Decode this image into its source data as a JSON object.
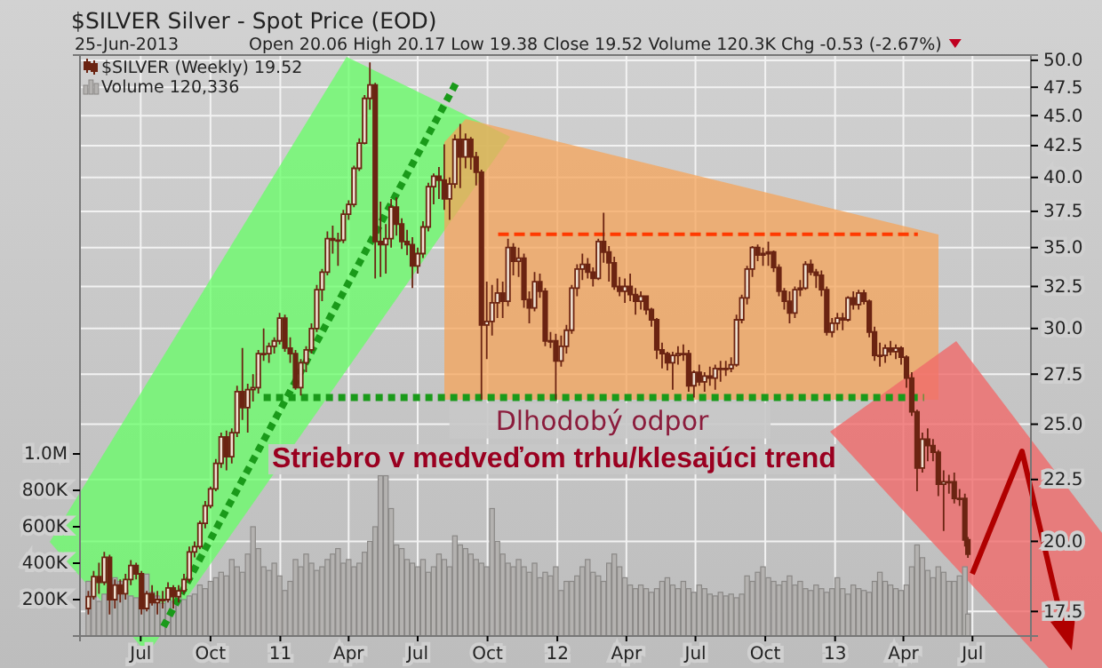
{
  "chart_data": {
    "type": "candlestick",
    "title": "$SILVER Silver - Spot Price (EOD)",
    "subtitle": "25-Jun-2013",
    "annotations": [
      "Open 20.06 High 20.17 Low 19.38 Close 19.52 Volume 120.3K Chg -0.53 (-2.67%)",
      {
        "text": "Dlhodobý odpor",
        "x": "2011-10-07",
        "y": 26.3
      },
      "Striebro v medveďom trhu/klesajúci trend"
    ],
    "x": [
      "2010-04-23",
      "2010-04-30",
      "2010-05-07",
      "2010-05-14",
      "2010-05-21",
      "2010-05-28",
      "2010-06-04",
      "2010-06-11",
      "2010-06-18",
      "2010-06-25",
      "2010-07-02",
      "2010-07-09",
      "2010-07-16",
      "2010-07-23",
      "2010-07-30",
      "2010-08-06",
      "2010-08-13",
      "2010-08-20",
      "2010-08-27",
      "2010-09-03",
      "2010-09-10",
      "2010-09-17",
      "2010-09-24",
      "2010-10-01",
      "2010-10-08",
      "2010-10-15",
      "2010-10-22",
      "2010-10-29",
      "2010-11-05",
      "2010-11-12",
      "2010-11-19",
      "2010-11-26",
      "2010-12-03",
      "2010-12-10",
      "2010-12-17",
      "2010-12-24",
      "2010-12-31",
      "2011-01-07",
      "2011-01-14",
      "2011-01-21",
      "2011-01-28",
      "2011-02-04",
      "2011-02-11",
      "2011-02-18",
      "2011-02-25",
      "2011-03-04",
      "2011-03-11",
      "2011-03-18",
      "2011-03-25",
      "2011-04-01",
      "2011-04-08",
      "2011-04-15",
      "2011-04-22",
      "2011-04-29",
      "2011-05-06",
      "2011-05-13",
      "2011-05-20",
      "2011-05-27",
      "2011-06-03",
      "2011-06-10",
      "2011-06-17",
      "2011-06-24",
      "2011-07-01",
      "2011-07-08",
      "2011-07-15",
      "2011-07-22",
      "2011-07-29",
      "2011-08-05",
      "2011-08-12",
      "2011-08-19",
      "2011-08-26",
      "2011-09-02",
      "2011-09-09",
      "2011-09-16",
      "2011-09-23",
      "2011-09-30",
      "2011-10-07",
      "2011-10-14",
      "2011-10-21",
      "2011-10-28",
      "2011-11-04",
      "2011-11-11",
      "2011-11-18",
      "2011-11-25",
      "2011-12-02",
      "2011-12-09",
      "2011-12-16",
      "2011-12-23",
      "2011-12-30",
      "2012-01-06",
      "2012-01-13",
      "2012-01-20",
      "2012-01-27",
      "2012-02-03",
      "2012-02-10",
      "2012-02-17",
      "2012-02-24",
      "2012-03-02",
      "2012-03-09",
      "2012-03-16",
      "2012-03-23",
      "2012-03-30",
      "2012-04-06",
      "2012-04-13",
      "2012-04-20",
      "2012-04-27",
      "2012-05-04",
      "2012-05-11",
      "2012-05-18",
      "2012-05-25",
      "2012-06-01",
      "2012-06-08",
      "2012-06-15",
      "2012-06-22",
      "2012-06-29",
      "2012-07-06",
      "2012-07-13",
      "2012-07-20",
      "2012-07-27",
      "2012-08-03",
      "2012-08-10",
      "2012-08-17",
      "2012-08-24",
      "2012-08-31",
      "2012-09-07",
      "2012-09-14",
      "2012-09-21",
      "2012-09-28",
      "2012-10-05",
      "2012-10-12",
      "2012-10-19",
      "2012-10-26",
      "2012-11-02",
      "2012-11-09",
      "2012-11-16",
      "2012-11-23",
      "2012-11-30",
      "2012-12-07",
      "2012-12-14",
      "2012-12-21",
      "2012-12-28",
      "2013-01-04",
      "2013-01-11",
      "2013-01-18",
      "2013-01-25",
      "2013-02-01",
      "2013-02-08",
      "2013-02-15",
      "2013-02-22",
      "2013-03-01",
      "2013-03-08",
      "2013-03-15",
      "2013-03-22",
      "2013-03-29",
      "2013-04-05",
      "2013-04-12",
      "2013-04-19",
      "2013-04-26",
      "2013-05-03",
      "2013-05-10",
      "2013-05-17",
      "2013-05-24",
      "2013-05-31",
      "2013-06-07",
      "2013-06-14",
      "2013-06-21",
      "2013-06-25"
    ],
    "series": [
      {
        "name": "$SILVER (Weekly) 19.52",
        "color": "#6b2412",
        "ohlc": [
          [
            17.6,
            18.2,
            17.4,
            18.0
          ],
          [
            18.0,
            18.9,
            17.9,
            18.7
          ],
          [
            18.7,
            19.2,
            18.1,
            18.5
          ],
          [
            18.5,
            19.6,
            18.4,
            19.4
          ],
          [
            19.4,
            19.5,
            17.4,
            17.9
          ],
          [
            17.9,
            18.6,
            17.6,
            18.4
          ],
          [
            18.4,
            18.6,
            17.8,
            18.1
          ],
          [
            18.1,
            18.8,
            17.9,
            18.6
          ],
          [
            18.6,
            19.3,
            18.4,
            19.1
          ],
          [
            19.1,
            19.2,
            18.6,
            18.8
          ],
          [
            18.8,
            18.9,
            17.4,
            17.6
          ],
          [
            17.6,
            18.2,
            17.5,
            18.1
          ],
          [
            18.1,
            18.4,
            17.7,
            17.8
          ],
          [
            17.8,
            18.2,
            17.4,
            17.9
          ],
          [
            17.9,
            18.2,
            17.6,
            17.9
          ],
          [
            17.9,
            18.5,
            17.8,
            18.3
          ],
          [
            18.3,
            18.4,
            17.6,
            18.0
          ],
          [
            18.0,
            18.4,
            17.8,
            18.2
          ],
          [
            18.2,
            18.8,
            18.1,
            18.6
          ],
          [
            18.6,
            19.8,
            18.5,
            19.6
          ],
          [
            19.6,
            20.0,
            19.4,
            19.8
          ],
          [
            19.8,
            20.8,
            19.7,
            20.7
          ],
          [
            20.7,
            21.6,
            20.5,
            21.4
          ],
          [
            21.4,
            22.2,
            21.3,
            22.1
          ],
          [
            22.1,
            23.4,
            22.0,
            23.2
          ],
          [
            23.2,
            24.6,
            23.0,
            24.4
          ],
          [
            24.4,
            24.7,
            22.9,
            23.5
          ],
          [
            23.5,
            24.8,
            23.2,
            24.6
          ],
          [
            24.6,
            26.9,
            24.4,
            26.6
          ],
          [
            26.6,
            28.9,
            25.2,
            25.8
          ],
          [
            25.8,
            27.0,
            24.6,
            26.7
          ],
          [
            26.7,
            27.5,
            26.1,
            26.8
          ],
          [
            26.8,
            28.8,
            26.5,
            28.6
          ],
          [
            28.6,
            30.0,
            28.2,
            28.6
          ],
          [
            28.6,
            29.2,
            28.1,
            29.0
          ],
          [
            29.0,
            29.5,
            28.6,
            29.3
          ],
          [
            29.3,
            30.9,
            29.1,
            30.6
          ],
          [
            30.6,
            30.8,
            28.7,
            28.9
          ],
          [
            28.9,
            29.5,
            28.1,
            28.6
          ],
          [
            28.6,
            28.8,
            26.7,
            26.8
          ],
          [
            26.8,
            28.3,
            26.4,
            28.1
          ],
          [
            28.1,
            29.0,
            27.6,
            28.8
          ],
          [
            28.8,
            30.3,
            28.6,
            30.0
          ],
          [
            30.0,
            32.6,
            29.8,
            32.3
          ],
          [
            32.3,
            33.6,
            31.6,
            33.4
          ],
          [
            33.4,
            36.1,
            33.2,
            35.6
          ],
          [
            35.6,
            36.5,
            34.6,
            35.5
          ],
          [
            35.5,
            36.0,
            33.8,
            35.5
          ],
          [
            35.5,
            37.6,
            35.3,
            37.3
          ],
          [
            37.3,
            38.3,
            36.9,
            38.0
          ],
          [
            38.0,
            40.9,
            37.8,
            40.7
          ],
          [
            40.7,
            43.1,
            40.5,
            42.7
          ],
          [
            42.7,
            46.8,
            42.6,
            46.5
          ],
          [
            46.5,
            49.8,
            45.5,
            47.7
          ],
          [
            47.7,
            47.9,
            33.0,
            35.4
          ],
          [
            35.4,
            38.2,
            33.1,
            35.2
          ],
          [
            35.2,
            36.6,
            33.3,
            35.6
          ],
          [
            35.6,
            38.4,
            35.0,
            37.8
          ],
          [
            37.8,
            38.5,
            35.8,
            36.6
          ],
          [
            36.6,
            37.0,
            34.9,
            35.4
          ],
          [
            35.4,
            36.2,
            34.5,
            35.2
          ],
          [
            35.2,
            35.7,
            32.4,
            33.8
          ],
          [
            33.8,
            35.0,
            33.3,
            34.6
          ],
          [
            34.6,
            36.8,
            34.3,
            36.4
          ],
          [
            36.4,
            39.6,
            36.1,
            39.3
          ],
          [
            39.3,
            40.3,
            38.0,
            40.1
          ],
          [
            40.1,
            40.8,
            38.4,
            39.8
          ],
          [
            39.8,
            42.6,
            37.6,
            38.4
          ],
          [
            38.4,
            40.0,
            36.9,
            39.5
          ],
          [
            39.5,
            43.4,
            39.2,
            43.0
          ],
          [
            43.0,
            44.3,
            39.2,
            41.6
          ],
          [
            41.6,
            43.5,
            40.7,
            43.0
          ],
          [
            43.0,
            43.2,
            40.6,
            41.6
          ],
          [
            41.6,
            42.0,
            39.4,
            40.4
          ],
          [
            40.4,
            40.6,
            26.2,
            30.2
          ],
          [
            30.2,
            32.8,
            28.3,
            30.4
          ],
          [
            30.4,
            32.6,
            29.6,
            31.5
          ],
          [
            31.5,
            33.0,
            30.6,
            32.1
          ],
          [
            32.1,
            32.8,
            30.6,
            31.6
          ],
          [
            31.6,
            35.6,
            31.3,
            35.0
          ],
          [
            35.0,
            35.3,
            33.2,
            34.1
          ],
          [
            34.1,
            35.0,
            33.1,
            34.3
          ],
          [
            34.3,
            34.6,
            31.2,
            31.7
          ],
          [
            31.7,
            32.2,
            30.3,
            31.2
          ],
          [
            31.2,
            33.4,
            31.0,
            32.8
          ],
          [
            32.8,
            33.3,
            31.8,
            32.2
          ],
          [
            32.2,
            32.4,
            29.0,
            29.3
          ],
          [
            29.3,
            29.8,
            28.9,
            29.3
          ],
          [
            29.3,
            29.7,
            26.2,
            28.2
          ],
          [
            28.2,
            29.6,
            27.9,
            29.0
          ],
          [
            29.0,
            30.2,
            28.6,
            29.9
          ],
          [
            29.9,
            32.6,
            29.7,
            32.4
          ],
          [
            32.4,
            33.9,
            31.9,
            33.6
          ],
          [
            33.6,
            34.6,
            32.9,
            33.9
          ],
          [
            33.9,
            34.3,
            33.0,
            33.4
          ],
          [
            33.4,
            33.7,
            32.5,
            33.0
          ],
          [
            33.0,
            35.6,
            32.9,
            35.4
          ],
          [
            35.4,
            37.4,
            34.0,
            34.7
          ],
          [
            34.7,
            35.1,
            32.8,
            34.0
          ],
          [
            34.0,
            34.4,
            32.3,
            32.5
          ],
          [
            32.5,
            33.1,
            31.9,
            32.2
          ],
          [
            32.2,
            33.0,
            31.5,
            32.5
          ],
          [
            32.5,
            33.3,
            31.6,
            32.0
          ],
          [
            32.0,
            32.4,
            30.8,
            31.6
          ],
          [
            31.6,
            32.2,
            31.1,
            31.9
          ],
          [
            31.9,
            31.9,
            30.8,
            31.1
          ],
          [
            31.1,
            31.2,
            30.1,
            30.5
          ],
          [
            30.5,
            30.6,
            28.3,
            28.8
          ],
          [
            28.8,
            29.2,
            27.8,
            28.6
          ],
          [
            28.6,
            28.7,
            27.7,
            28.1
          ],
          [
            28.1,
            28.7,
            26.7,
            28.5
          ],
          [
            28.5,
            29.0,
            28.0,
            28.6
          ],
          [
            28.6,
            29.1,
            28.2,
            28.6
          ],
          [
            28.6,
            28.8,
            26.6,
            26.9
          ],
          [
            26.9,
            27.7,
            26.3,
            27.6
          ],
          [
            27.6,
            28.0,
            26.9,
            27.1
          ],
          [
            27.1,
            27.6,
            26.6,
            27.4
          ],
          [
            27.4,
            27.9,
            26.9,
            27.3
          ],
          [
            27.3,
            28.0,
            26.7,
            27.8
          ],
          [
            27.8,
            28.2,
            27.1,
            27.8
          ],
          [
            27.8,
            28.2,
            27.4,
            27.8
          ],
          [
            27.8,
            28.4,
            27.6,
            28.0
          ],
          [
            28.0,
            30.8,
            27.9,
            30.5
          ],
          [
            30.5,
            32.0,
            30.3,
            31.8
          ],
          [
            31.8,
            33.8,
            31.4,
            33.6
          ],
          [
            33.6,
            35.1,
            33.1,
            35.0
          ],
          [
            35.0,
            35.2,
            34.1,
            34.5
          ],
          [
            34.5,
            35.0,
            33.8,
            34.6
          ],
          [
            34.6,
            35.4,
            33.8,
            34.7
          ],
          [
            34.7,
            34.8,
            33.4,
            33.7
          ],
          [
            33.7,
            33.9,
            31.9,
            32.2
          ],
          [
            32.2,
            32.4,
            31.1,
            31.6
          ],
          [
            31.6,
            32.2,
            30.3,
            30.9
          ],
          [
            30.9,
            32.5,
            30.6,
            32.3
          ],
          [
            32.3,
            32.9,
            31.9,
            32.4
          ],
          [
            32.4,
            34.1,
            32.3,
            33.9
          ],
          [
            33.9,
            34.2,
            33.2,
            33.4
          ],
          [
            33.4,
            33.6,
            32.4,
            33.2
          ],
          [
            33.2,
            33.5,
            31.9,
            32.3
          ],
          [
            32.3,
            32.5,
            29.6,
            29.8
          ],
          [
            29.8,
            30.6,
            29.5,
            30.3
          ],
          [
            30.3,
            30.9,
            29.9,
            30.6
          ],
          [
            30.6,
            30.9,
            29.9,
            30.5
          ],
          [
            30.5,
            31.9,
            30.4,
            31.8
          ],
          [
            31.8,
            32.2,
            31.1,
            31.4
          ],
          [
            31.4,
            32.3,
            31.1,
            32.1
          ],
          [
            32.1,
            32.3,
            31.4,
            31.6
          ],
          [
            31.6,
            31.7,
            29.5,
            29.8
          ],
          [
            29.8,
            30.1,
            28.2,
            28.5
          ],
          [
            28.5,
            29.2,
            27.9,
            28.5
          ],
          [
            28.5,
            29.1,
            28.1,
            28.9
          ],
          [
            28.9,
            29.3,
            28.5,
            28.7
          ],
          [
            28.7,
            29.1,
            28.3,
            28.9
          ],
          [
            28.9,
            29.0,
            28.0,
            28.4
          ],
          [
            28.4,
            28.5,
            26.8,
            27.3
          ],
          [
            27.3,
            27.6,
            25.4,
            25.6
          ],
          [
            25.6,
            25.7,
            22.0,
            23.0
          ],
          [
            23.0,
            24.6,
            22.8,
            24.3
          ],
          [
            24.3,
            24.8,
            23.3,
            24.0
          ],
          [
            24.0,
            24.3,
            23.3,
            23.7
          ],
          [
            23.7,
            23.8,
            21.8,
            22.3
          ],
          [
            22.3,
            22.9,
            20.4,
            22.4
          ],
          [
            22.4,
            22.7,
            21.9,
            22.4
          ],
          [
            22.4,
            22.8,
            21.5,
            21.7
          ],
          [
            21.7,
            22.1,
            21.4,
            21.7
          ],
          [
            21.7,
            21.9,
            19.8,
            20.05
          ],
          [
            20.06,
            20.17,
            19.38,
            19.52
          ]
        ]
      },
      {
        "type": "bar",
        "name": "Volume 120,336",
        "axis": "y2",
        "color": "#b4b2b0",
        "values": [
          300000,
          210000,
          190000,
          230000,
          260000,
          320000,
          300000,
          250000,
          220000,
          210000,
          230000,
          340000,
          240000,
          220000,
          180000,
          200000,
          190000,
          210000,
          200000,
          220000,
          230000,
          280000,
          260000,
          300000,
          320000,
          350000,
          330000,
          420000,
          380000,
          350000,
          450000,
          600000,
          480000,
          380000,
          360000,
          400000,
          330000,
          250000,
          300000,
          420000,
          380000,
          450000,
          400000,
          360000,
          380000,
          420000,
          450000,
          480000,
          400000,
          420000,
          380000,
          400000,
          460000,
          520000,
          600000,
          880000,
          880000,
          700000,
          500000,
          480000,
          420000,
          400000,
          380000,
          420000,
          350000,
          380000,
          450000,
          420000,
          380000,
          550000,
          500000,
          480000,
          450000,
          420000,
          400000,
          380000,
          700000,
          520000,
          450000,
          400000,
          380000,
          420000,
          380000,
          350000,
          400000,
          320000,
          350000,
          330000,
          380000,
          250000,
          300000,
          300000,
          330000,
          380000,
          420000,
          350000,
          330000,
          300000,
          400000,
          450000,
          380000,
          320000,
          280000,
          260000,
          280000,
          260000,
          240000,
          260000,
          300000,
          320000,
          280000,
          260000,
          300000,
          260000,
          240000,
          280000,
          260000,
          230000,
          220000,
          240000,
          220000,
          230000,
          210000,
          230000,
          330000,
          300000,
          350000,
          380000,
          320000,
          300000,
          280000,
          300000,
          330000,
          280000,
          300000,
          260000,
          250000,
          280000,
          260000,
          240000,
          260000,
          320000,
          260000,
          230000,
          280000,
          260000,
          250000,
          240000,
          300000,
          350000,
          300000,
          280000,
          260000,
          250000,
          280000,
          380000,
          500000,
          430000,
          360000,
          320000,
          380000,
          350000,
          300000,
          300000,
          330000,
          380000,
          120336
        ]
      },
      {
        "type": "line",
        "color": "#1a9a1a",
        "line_style": "dotted",
        "x": [
          "2010-07-31",
          "2011-08-20"
        ],
        "values": [
          17.0,
          47.8
        ]
      },
      {
        "type": "line",
        "color": "#1a9a1a",
        "line_style": "dotted",
        "x": [
          "2010-12-10",
          "2013-04-28"
        ],
        "values": [
          26.3,
          26.3
        ]
      },
      {
        "type": "line",
        "color": "#ff3a00",
        "line_style": "dashed",
        "x": [
          "2011-10-15",
          "2013-04-20"
        ],
        "values": [
          35.9,
          35.9
        ]
      }
    ],
    "xlim": [
      "2010-04-12",
      "2013-09-16"
    ],
    "xticks": [
      {
        "value": "2010-07-01",
        "label": "Jul"
      },
      {
        "value": "2010-10-01",
        "label": "Oct"
      },
      {
        "value": "2011-01-01",
        "label": "11"
      },
      {
        "value": "2011-04-01",
        "label": "Apr"
      },
      {
        "value": "2011-07-01",
        "label": "Jul"
      },
      {
        "value": "2011-10-01",
        "label": "Oct"
      },
      {
        "value": "2012-01-01",
        "label": "12"
      },
      {
        "value": "2012-04-01",
        "label": "Apr"
      },
      {
        "value": "2012-07-01",
        "label": "Jul"
      },
      {
        "value": "2012-10-01",
        "label": "Oct"
      },
      {
        "value": "2013-01-01",
        "label": "13"
      },
      {
        "value": "2013-04-01",
        "label": "Apr"
      },
      {
        "value": "2013-07-01",
        "label": "Jul"
      }
    ],
    "ylim": [
      16.7,
      50.5
    ],
    "yticks": [
      17.5,
      {
        "value": 20,
        "label": "20.0"
      },
      22.5,
      {
        "value": 25,
        "label": "25.0"
      },
      27.5,
      {
        "value": 30,
        "label": "30.0"
      },
      32.5,
      {
        "value": 35,
        "label": "35.0"
      },
      37.5,
      {
        "value": 40,
        "label": "40.0"
      },
      42.5,
      {
        "value": 45,
        "label": "45.0"
      },
      47.5,
      {
        "value": 50,
        "label": "50.0"
      }
    ],
    "y2lim": [
      0,
      3190000
    ],
    "y2ticks": [
      {
        "value": 200000,
        "label": "200K"
      },
      {
        "value": 400000,
        "label": "400K"
      },
      {
        "value": 600000,
        "label": "600K"
      },
      {
        "value": 800000,
        "label": "800K"
      },
      {
        "value": 1000000,
        "label": "1.0M"
      }
    ],
    "log": "y",
    "grid": true,
    "legend": "top left"
  }
}
